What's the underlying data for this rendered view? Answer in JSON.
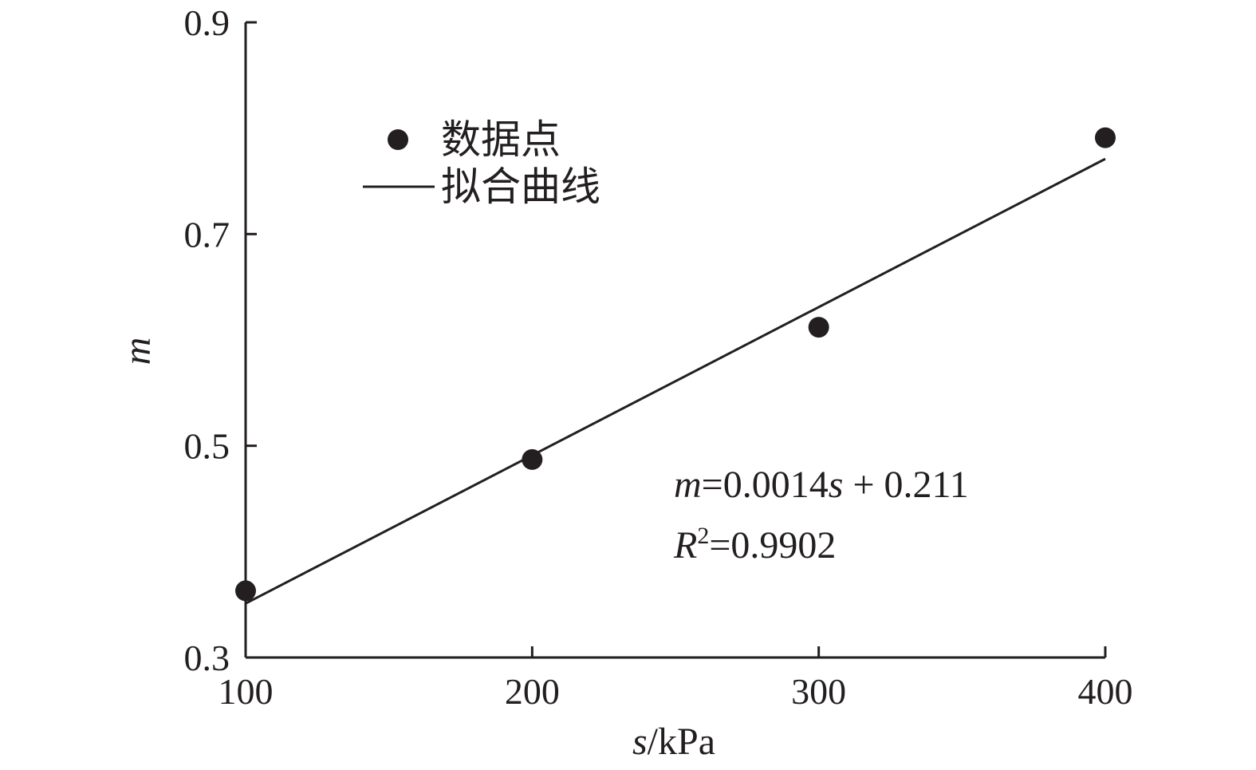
{
  "chart_data": {
    "type": "scatter",
    "xlabel_var": "s",
    "xlabel_unit": "/kPa",
    "ylabel": "m",
    "xlim": [
      100,
      400
    ],
    "ylim": [
      0.3,
      0.9
    ],
    "xticks": [
      "100",
      "200",
      "300",
      "400"
    ],
    "yticks": [
      "0.3",
      "0.5",
      "0.7",
      "0.9"
    ],
    "grid": false,
    "legend_position": "top-left",
    "series": [
      {
        "name": "数据点",
        "marker": "filled-circle",
        "x": [
          100,
          200,
          300,
          400
        ],
        "y": [
          0.363,
          0.487,
          0.612,
          0.791
        ]
      },
      {
        "name": "拟合曲线",
        "style": "line",
        "slope": 0.0014,
        "intercept": 0.211,
        "x": [
          100,
          400
        ],
        "y": [
          0.351,
          0.771
        ]
      }
    ],
    "annotation": {
      "eq_lhs": "m",
      "eq_mid": "=0.0014",
      "eq_var": "s",
      "eq_rhs": " + 0.211",
      "r2_letter": "R",
      "r2_sup": "2",
      "r2_value": "=0.9902"
    },
    "colors": {
      "ink": "#231f20"
    }
  }
}
